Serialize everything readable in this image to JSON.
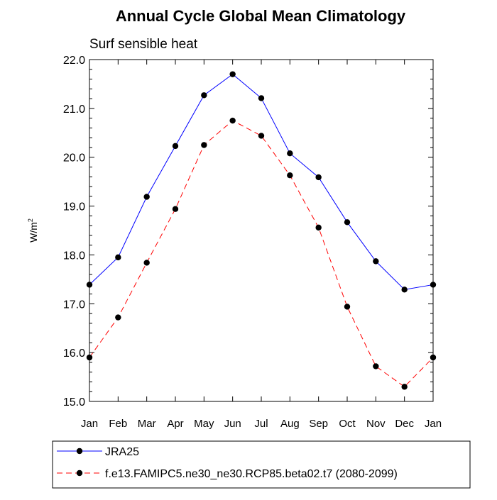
{
  "chart_data": {
    "type": "line",
    "title": "Annual Cycle Global Mean Climatology",
    "subtitle": "Surf sensible heat",
    "xlabel": "",
    "ylabel": "W/m",
    "ylabel_sup": "2",
    "categories": [
      "Jan",
      "Feb",
      "Mar",
      "Apr",
      "May",
      "Jun",
      "Jul",
      "Aug",
      "Sep",
      "Oct",
      "Nov",
      "Dec",
      "Jan"
    ],
    "ylim": [
      15.0,
      22.0
    ],
    "yticks": [
      "15.0",
      "16.0",
      "17.0",
      "18.0",
      "19.0",
      "20.0",
      "21.0",
      "22.0"
    ],
    "grid": false,
    "legend_position": "bottom",
    "series": [
      {
        "name": "JRA25",
        "color": "#0000ff",
        "dash": "solid",
        "values": [
          17.39,
          17.95,
          19.19,
          20.23,
          21.27,
          21.7,
          21.21,
          20.08,
          19.59,
          18.67,
          17.87,
          17.29,
          17.39
        ]
      },
      {
        "name": "f.e13.FAMIPC5.ne30_ne30.RCP85.beta02.t7 (2080-2099)",
        "color": "#ff0000",
        "dash": "dashed",
        "values": [
          15.9,
          16.72,
          17.84,
          18.94,
          20.25,
          20.75,
          20.44,
          19.63,
          18.56,
          16.94,
          15.72,
          15.3,
          15.9
        ]
      }
    ]
  }
}
